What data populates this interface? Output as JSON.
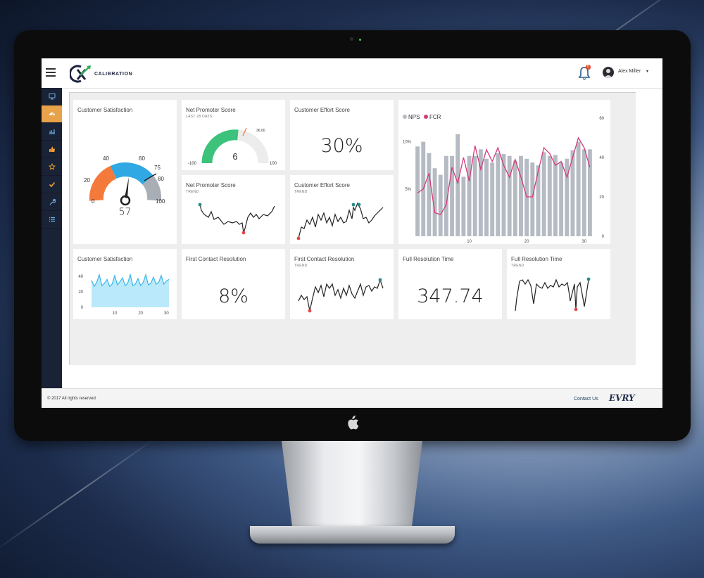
{
  "app": {
    "brand": "CALIBRATION",
    "notification_count": "0",
    "user_name": "Alex Miller"
  },
  "sidebar": {
    "items": [
      {
        "icon": "monitor-icon"
      },
      {
        "icon": "dashboard-icon",
        "active": true
      },
      {
        "icon": "bar-chart-icon"
      },
      {
        "icon": "thumbs-up-icon"
      },
      {
        "icon": "star-icon"
      },
      {
        "icon": "check-icon"
      },
      {
        "icon": "wrench-icon"
      },
      {
        "icon": "list-icon"
      }
    ]
  },
  "cards": {
    "csat_gauge": {
      "title": "Customer Satisfaction",
      "value": "57",
      "ticks": [
        "0",
        "20",
        "40",
        "60",
        "75",
        "80",
        "100"
      ],
      "needle_value": 57
    },
    "nps_gauge": {
      "title": "Net Promoter Score",
      "subtitle": "LAST 28 DAYS",
      "value": "6",
      "min_label": "-100",
      "max_label": "100",
      "target_label": "36.00",
      "needle_value": 6
    },
    "ces_value": {
      "title": "Customer Effort Score",
      "value": "30%"
    },
    "nps_trend": {
      "title": "Net Promoter Score",
      "subtitle": "TREND"
    },
    "ces_trend": {
      "title": "Customer Effort Score",
      "subtitle": "TREND"
    },
    "csat_area": {
      "title": "Customer Satisfaction"
    },
    "fcr_value": {
      "title": "First Contact Resolution",
      "value": "8%"
    },
    "fcr_trend": {
      "title": "First Contact Resolution",
      "subtitle": "TREND"
    },
    "frt_value": {
      "title": "Full Resolution Time",
      "value": "347.74"
    },
    "frt_trend": {
      "title": "Full Resolution Time",
      "subtitle": "TREND"
    }
  },
  "footer": {
    "copyright": "© 2017 All rights reserved",
    "contact": "Contact Us",
    "partner_logo": "EVRY"
  },
  "colors": {
    "sidebar": "#1a2236",
    "sidebar_active": "#e8a24a",
    "gauge_orange": "#f37a3a",
    "gauge_blue": "#2fa8e4",
    "gauge_gray": "#a9aeb6",
    "nps_green": "#3cc27a",
    "fcr_pink": "#d33a7c",
    "bar_gray": "#b5bac3",
    "teal_dot": "#2a8a86",
    "red_dot": "#e5484d",
    "area_blue": "#7fd3f5"
  },
  "chart_data": [
    {
      "id": "nps_fcr_combo",
      "type": "bar",
      "series": [
        {
          "name": "NPS",
          "kind": "bar",
          "axis": "left",
          "values": [
            9.5,
            10,
            8.8,
            7.2,
            6.5,
            8.5,
            8.5,
            10.8,
            6.3,
            8.5,
            8.5,
            9.2,
            8.2,
            7.8,
            8.8,
            8.7,
            8.5,
            8,
            8.5,
            8.2,
            7.8,
            7.5,
            8.9,
            8.5,
            8.6,
            7.8,
            8.2,
            9.1,
            10,
            9.2,
            9.2
          ]
        },
        {
          "name": "FCR",
          "kind": "line",
          "axis": "right",
          "values": [
            22,
            24,
            32,
            12,
            11,
            16,
            35,
            27,
            40,
            28,
            46,
            34,
            44,
            38,
            45,
            36,
            30,
            39,
            30,
            20,
            20,
            33,
            45,
            42,
            36,
            38,
            30,
            40,
            50,
            45,
            35
          ]
        }
      ],
      "x_ticks": [
        10,
        20,
        30
      ],
      "y_left_ticks": [
        "5%",
        "10%"
      ],
      "y_right_ticks": [
        0,
        20,
        40,
        60
      ],
      "ylim_left": [
        0,
        12.5
      ],
      "ylim_right": [
        0,
        60
      ],
      "legend": "top-left"
    },
    {
      "id": "csat_area_chart",
      "type": "area",
      "values": [
        35,
        27,
        32,
        42,
        28,
        31,
        36,
        27,
        30,
        41,
        29,
        33,
        38,
        28,
        31,
        42,
        28,
        30,
        37,
        28,
        32,
        42,
        29,
        31,
        39,
        30,
        32,
        41,
        30,
        34,
        36
      ],
      "x_ticks": [
        10,
        20,
        30
      ],
      "y_ticks": [
        0,
        20,
        40
      ],
      "ylim": [
        0,
        50
      ]
    }
  ]
}
